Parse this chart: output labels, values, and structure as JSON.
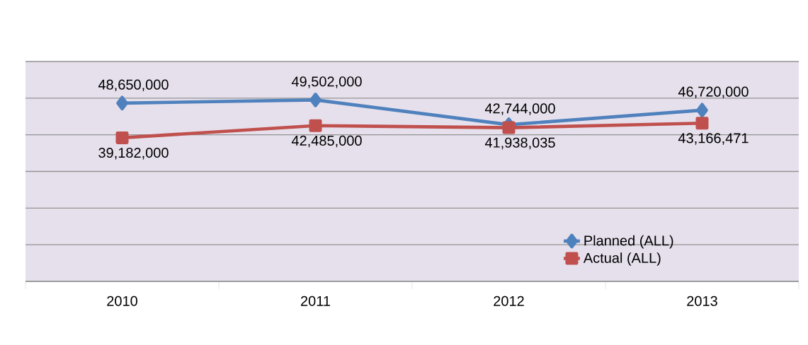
{
  "chart_data": {
    "type": "line",
    "categories": [
      "2010",
      "2011",
      "2012",
      "2013"
    ],
    "series": [
      {
        "name": "Planned (ALL)",
        "color": "#4f81bd",
        "marker": "diamond",
        "values": [
          48650000,
          49502000,
          42744000,
          46720000
        ],
        "value_labels": [
          "48,650,000",
          "49,502,000",
          "42,744,000",
          "46,720,000"
        ]
      },
      {
        "name": "Actual (ALL)",
        "color": "#c0504d",
        "marker": "square",
        "values": [
          39182000,
          42485000,
          41938035,
          43166471
        ],
        "value_labels": [
          "39,182,000",
          "42,485,000",
          "41,938,035",
          "43,166,471"
        ]
      }
    ],
    "ylim": [
      0,
      60000000
    ],
    "yticks": [
      {
        "value": 0,
        "label": null
      },
      {
        "value": 10000000,
        "label": null
      },
      {
        "value": 20000000,
        "label": null
      },
      {
        "value": 30000000,
        "label": null
      },
      {
        "value": 40000000,
        "label": null
      },
      {
        "value": 50000000,
        "label": null
      },
      {
        "value": 60000000,
        "label": null
      }
    ],
    "tick_labels": "x",
    "grid": "y",
    "legend": "bottom right",
    "line_style": "solid"
  }
}
